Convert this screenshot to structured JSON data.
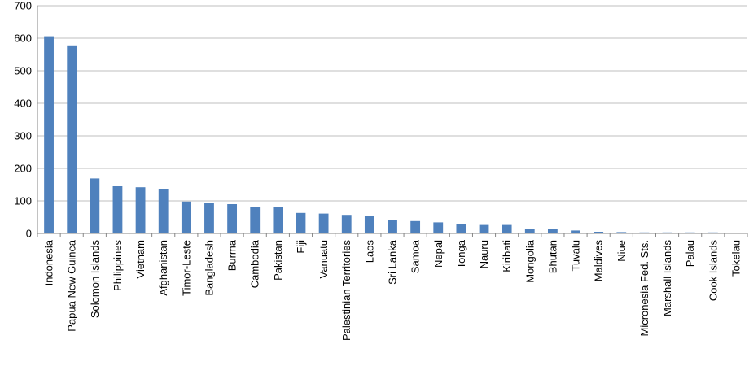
{
  "chart_data": {
    "type": "bar",
    "title": "",
    "xlabel": "",
    "ylabel": "",
    "ylim": [
      0,
      700
    ],
    "yticks": [
      0,
      100,
      200,
      300,
      400,
      500,
      600,
      700
    ],
    "grid": true,
    "categories": [
      "Indonesia",
      "Papua New Guinea",
      "Solomon Islands",
      "Philippines",
      "Vietnam",
      "Afghanistan",
      "Timor-Leste",
      "Bangladesh",
      "Burma",
      "Cambodia",
      "Pakistan",
      "Fiji",
      "Vanuatu",
      "Palestinian Territories",
      "Laos",
      "Sri Lanka",
      "Samoa",
      "Nepal",
      "Tonga",
      "Nauru",
      "Kiribati",
      "Mongolia",
      "Bhutan",
      "Tuvalu",
      "Maldives",
      "Niue",
      "Micronesia Fed. Sts.",
      "Marshall Islands",
      "Palau",
      "Cook Islands",
      "Tokelau"
    ],
    "values": [
      606,
      578,
      169,
      145,
      142,
      135,
      98,
      95,
      90,
      80,
      80,
      63,
      61,
      57,
      55,
      42,
      38,
      34,
      30,
      26,
      26,
      15,
      15,
      9,
      5,
      4,
      3,
      3,
      3,
      3,
      2
    ],
    "bar_color": "#4f81bd",
    "grid_color": "#bfbfbf"
  }
}
